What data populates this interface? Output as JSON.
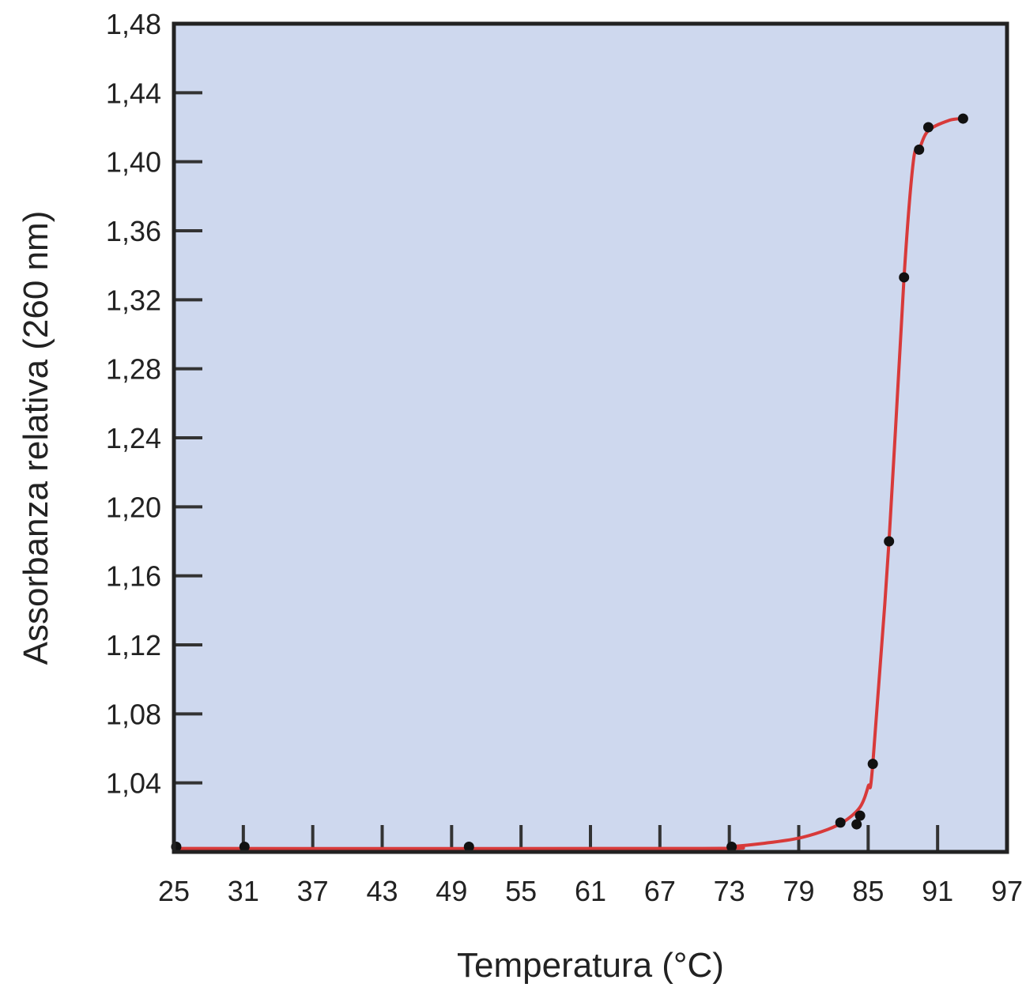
{
  "chart_data": {
    "type": "line",
    "title": "",
    "xlabel": "Temperatura (°C)",
    "ylabel": "Assorbanza relativa (260 nm)",
    "xlim": [
      25,
      97
    ],
    "ylim": [
      1.0,
      1.48
    ],
    "x_ticks": [
      25,
      31,
      37,
      43,
      49,
      55,
      61,
      67,
      73,
      79,
      85,
      91,
      97
    ],
    "x_tick_labels": [
      "25",
      "31",
      "37",
      "43",
      "49",
      "55",
      "61",
      "67",
      "73",
      "79",
      "85",
      "91",
      "97"
    ],
    "y_ticks": [
      1.04,
      1.08,
      1.12,
      1.16,
      1.2,
      1.24,
      1.28,
      1.32,
      1.36,
      1.4,
      1.44,
      1.48
    ],
    "y_tick_labels": [
      "1,04",
      "1,08",
      "1,12",
      "1,16",
      "1,20",
      "1,24",
      "1,28",
      "1,32",
      "1,36",
      "1,40",
      "1,44",
      "1,48"
    ],
    "grid": false,
    "series": [
      {
        "kind": "points",
        "x": [
          25.2,
          31.1,
          50.5,
          73.2,
          82.6,
          84.0,
          84.3,
          85.4,
          86.8,
          88.1,
          89.4,
          90.2,
          93.2
        ],
        "y": [
          1.003,
          1.003,
          1.003,
          1.003,
          1.017,
          1.016,
          1.021,
          1.051,
          1.18,
          1.333,
          1.407,
          1.42,
          1.425
        ]
      },
      {
        "kind": "curve",
        "x": [
          25.0,
          70.0,
          73.0,
          76.0,
          79.0,
          81.5,
          83.0,
          84.3,
          85.0,
          85.4,
          86.8,
          88.1,
          88.9,
          89.4,
          90.2,
          92.0,
          93.2
        ],
        "y": [
          1.002,
          1.002,
          1.003,
          1.005,
          1.008,
          1.013,
          1.018,
          1.026,
          1.038,
          1.051,
          1.18,
          1.333,
          1.4,
          1.407,
          1.418,
          1.424,
          1.425
        ]
      }
    ],
    "colors": {
      "plot_background": "#ced8ee",
      "curve": "#d83a3a",
      "points": "#111111",
      "frame": "#222222",
      "ticks": "#333333"
    }
  }
}
